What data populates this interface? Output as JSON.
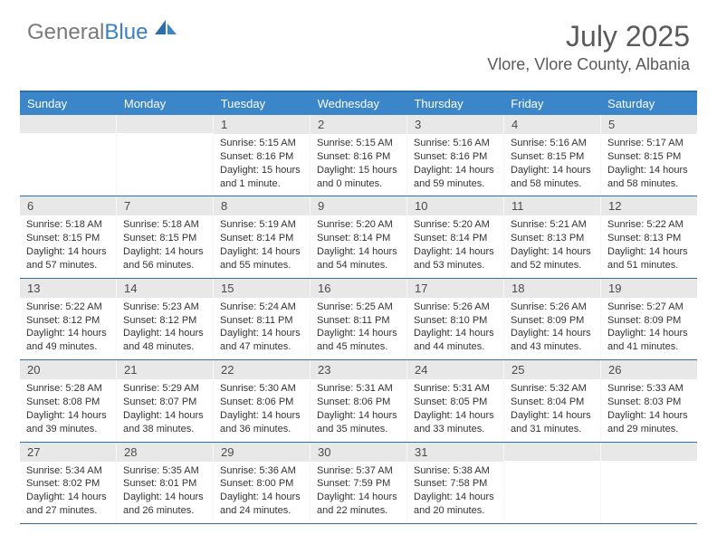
{
  "brand": {
    "part1": "General",
    "part2": "Blue"
  },
  "title": "July 2025",
  "location": "Vlore, Vlore County, Albania",
  "colors": {
    "header_bg": "#3a86c8",
    "header_border": "#2f6fa8",
    "daynum_bg": "#e8e8e8",
    "text_gray": "#5a5a5a",
    "brand_gray": "#7a7a7a",
    "brand_blue": "#3a7fc4"
  },
  "weekdays": [
    "Sunday",
    "Monday",
    "Tuesday",
    "Wednesday",
    "Thursday",
    "Friday",
    "Saturday"
  ],
  "weeks": [
    [
      null,
      null,
      {
        "n": "1",
        "sr": "5:15 AM",
        "ss": "8:16 PM",
        "dl": "15 hours and 1 minute."
      },
      {
        "n": "2",
        "sr": "5:15 AM",
        "ss": "8:16 PM",
        "dl": "15 hours and 0 minutes."
      },
      {
        "n": "3",
        "sr": "5:16 AM",
        "ss": "8:16 PM",
        "dl": "14 hours and 59 minutes."
      },
      {
        "n": "4",
        "sr": "5:16 AM",
        "ss": "8:15 PM",
        "dl": "14 hours and 58 minutes."
      },
      {
        "n": "5",
        "sr": "5:17 AM",
        "ss": "8:15 PM",
        "dl": "14 hours and 58 minutes."
      }
    ],
    [
      {
        "n": "6",
        "sr": "5:18 AM",
        "ss": "8:15 PM",
        "dl": "14 hours and 57 minutes."
      },
      {
        "n": "7",
        "sr": "5:18 AM",
        "ss": "8:15 PM",
        "dl": "14 hours and 56 minutes."
      },
      {
        "n": "8",
        "sr": "5:19 AM",
        "ss": "8:14 PM",
        "dl": "14 hours and 55 minutes."
      },
      {
        "n": "9",
        "sr": "5:20 AM",
        "ss": "8:14 PM",
        "dl": "14 hours and 54 minutes."
      },
      {
        "n": "10",
        "sr": "5:20 AM",
        "ss": "8:14 PM",
        "dl": "14 hours and 53 minutes."
      },
      {
        "n": "11",
        "sr": "5:21 AM",
        "ss": "8:13 PM",
        "dl": "14 hours and 52 minutes."
      },
      {
        "n": "12",
        "sr": "5:22 AM",
        "ss": "8:13 PM",
        "dl": "14 hours and 51 minutes."
      }
    ],
    [
      {
        "n": "13",
        "sr": "5:22 AM",
        "ss": "8:12 PM",
        "dl": "14 hours and 49 minutes."
      },
      {
        "n": "14",
        "sr": "5:23 AM",
        "ss": "8:12 PM",
        "dl": "14 hours and 48 minutes."
      },
      {
        "n": "15",
        "sr": "5:24 AM",
        "ss": "8:11 PM",
        "dl": "14 hours and 47 minutes."
      },
      {
        "n": "16",
        "sr": "5:25 AM",
        "ss": "8:11 PM",
        "dl": "14 hours and 45 minutes."
      },
      {
        "n": "17",
        "sr": "5:26 AM",
        "ss": "8:10 PM",
        "dl": "14 hours and 44 minutes."
      },
      {
        "n": "18",
        "sr": "5:26 AM",
        "ss": "8:09 PM",
        "dl": "14 hours and 43 minutes."
      },
      {
        "n": "19",
        "sr": "5:27 AM",
        "ss": "8:09 PM",
        "dl": "14 hours and 41 minutes."
      }
    ],
    [
      {
        "n": "20",
        "sr": "5:28 AM",
        "ss": "8:08 PM",
        "dl": "14 hours and 39 minutes."
      },
      {
        "n": "21",
        "sr": "5:29 AM",
        "ss": "8:07 PM",
        "dl": "14 hours and 38 minutes."
      },
      {
        "n": "22",
        "sr": "5:30 AM",
        "ss": "8:06 PM",
        "dl": "14 hours and 36 minutes."
      },
      {
        "n": "23",
        "sr": "5:31 AM",
        "ss": "8:06 PM",
        "dl": "14 hours and 35 minutes."
      },
      {
        "n": "24",
        "sr": "5:31 AM",
        "ss": "8:05 PM",
        "dl": "14 hours and 33 minutes."
      },
      {
        "n": "25",
        "sr": "5:32 AM",
        "ss": "8:04 PM",
        "dl": "14 hours and 31 minutes."
      },
      {
        "n": "26",
        "sr": "5:33 AM",
        "ss": "8:03 PM",
        "dl": "14 hours and 29 minutes."
      }
    ],
    [
      {
        "n": "27",
        "sr": "5:34 AM",
        "ss": "8:02 PM",
        "dl": "14 hours and 27 minutes."
      },
      {
        "n": "28",
        "sr": "5:35 AM",
        "ss": "8:01 PM",
        "dl": "14 hours and 26 minutes."
      },
      {
        "n": "29",
        "sr": "5:36 AM",
        "ss": "8:00 PM",
        "dl": "14 hours and 24 minutes."
      },
      {
        "n": "30",
        "sr": "5:37 AM",
        "ss": "7:59 PM",
        "dl": "14 hours and 22 minutes."
      },
      {
        "n": "31",
        "sr": "5:38 AM",
        "ss": "7:58 PM",
        "dl": "14 hours and 20 minutes."
      },
      null,
      null
    ]
  ],
  "labels": {
    "sunrise": "Sunrise:",
    "sunset": "Sunset:",
    "daylight": "Daylight:"
  }
}
